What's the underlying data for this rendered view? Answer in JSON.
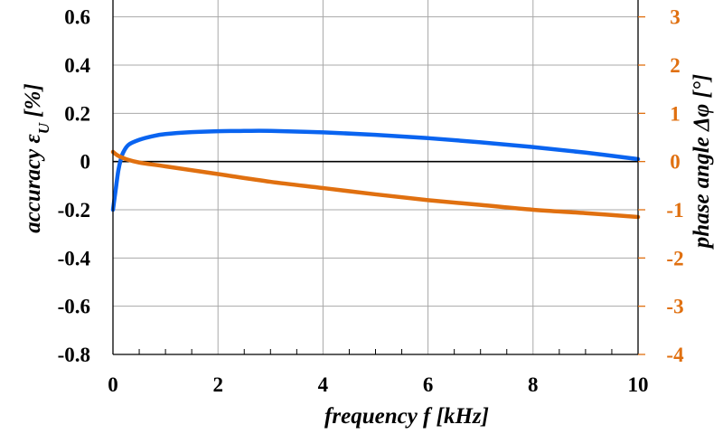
{
  "chart_data": {
    "type": "line",
    "xlabel": "frequency f [kHz]",
    "ylabel_left": "accuracy ε",
    "ylabel_left_subscript": "U",
    "ylabel_left_unit": " [%]",
    "ylabel_right": "phase angle Δφ [°]",
    "xlim": [
      0,
      10
    ],
    "ylim_left": [
      -0.8,
      0.7
    ],
    "ylim_right": [
      -4,
      3.5
    ],
    "x_ticks": [
      "0",
      "2",
      "4",
      "6",
      "8",
      "10"
    ],
    "y_left_ticks": [
      "0.6",
      "0.4",
      "0.2",
      "0",
      "-0.2",
      "-0.4",
      "-0.6",
      "-0.8"
    ],
    "y_right_ticks": [
      "3",
      "2",
      "1",
      "0",
      "-1",
      "-2",
      "-3",
      "-4"
    ],
    "grid": true,
    "colors": {
      "accuracy": "#0a64f0",
      "phase": "#e07010",
      "right_axis": "#e07010",
      "zero_line": "#000000",
      "grid": "#a8a8a8"
    },
    "series": [
      {
        "axis": "left",
        "x": [
          0,
          0.05,
          0.1,
          0.15,
          0.2,
          0.3,
          0.5,
          0.75,
          1,
          1.5,
          2,
          2.5,
          3,
          4,
          5,
          6,
          7,
          8,
          9,
          10
        ],
        "y": [
          -0.2,
          -0.12,
          -0.04,
          0.01,
          0.04,
          0.07,
          0.09,
          0.105,
          0.114,
          0.122,
          0.126,
          0.127,
          0.127,
          0.121,
          0.111,
          0.097,
          0.08,
          0.06,
          0.037,
          0.01
        ]
      },
      {
        "axis": "right",
        "x": [
          0,
          0.1,
          0.25,
          0.5,
          1,
          2,
          3,
          4,
          5,
          6,
          7,
          8,
          9,
          10
        ],
        "y": [
          0.2,
          0.12,
          0.05,
          -0.02,
          -0.1,
          -0.26,
          -0.42,
          -0.55,
          -0.68,
          -0.8,
          -0.9,
          -1.0,
          -1.07,
          -1.15
        ]
      }
    ]
  }
}
